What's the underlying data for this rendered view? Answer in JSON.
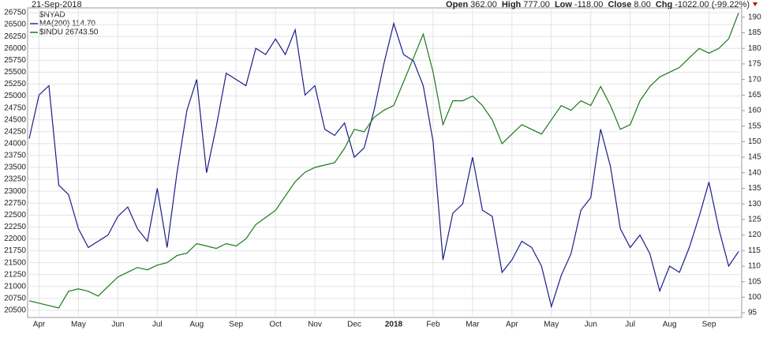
{
  "chart_data": {
    "type": "line",
    "title": "$NYAD",
    "date": "21-Sep-2018",
    "quote": [
      {
        "label": "Open",
        "value": "362.00"
      },
      {
        "label": "High",
        "value": "777.00"
      },
      {
        "label": "Low",
        "value": "-118.00"
      },
      {
        "label": "Close",
        "value": "8.00"
      },
      {
        "label": "Chg",
        "value": "-1022.00 (-99.22%)"
      }
    ],
    "categories": [
      null,
      "Apr",
      null,
      null,
      null,
      "May",
      null,
      null,
      null,
      "Jun",
      null,
      null,
      null,
      "Jul",
      null,
      null,
      null,
      "Aug",
      null,
      null,
      null,
      "Sep",
      null,
      null,
      null,
      "Oct",
      null,
      null,
      null,
      "Nov",
      null,
      null,
      null,
      "Dec",
      null,
      null,
      null,
      "2018",
      null,
      null,
      null,
      "Feb",
      null,
      null,
      null,
      "Mar",
      null,
      null,
      null,
      "Apr",
      null,
      null,
      null,
      "May",
      null,
      null,
      null,
      "Jun",
      null,
      null,
      null,
      "Jul",
      null,
      null,
      null,
      "Aug",
      null,
      null,
      null,
      "Sep",
      null,
      null,
      null
    ],
    "series": [
      {
        "name": "MA(200) 114.70",
        "color": "#1c1c8c",
        "axis": "y2",
        "values": [
          151,
          165,
          168,
          136,
          133,
          122,
          116,
          118,
          120,
          126,
          129,
          122,
          118,
          135,
          116,
          140,
          160,
          170,
          140,
          155,
          172,
          170,
          168,
          180,
          178,
          183,
          178,
          186,
          165,
          168,
          154,
          152,
          156,
          145,
          148,
          160,
          175,
          188,
          178,
          176,
          168,
          150,
          112,
          127,
          130,
          145,
          128,
          126,
          108,
          112,
          118,
          116,
          110,
          97,
          107,
          114,
          128,
          132,
          154,
          142,
          122,
          116,
          120,
          114,
          102,
          110,
          108,
          116,
          126,
          137,
          122,
          110,
          114.7
        ]
      },
      {
        "name": "$INDU 26743.50",
        "color": "#1a7a1a",
        "values": [
          20700,
          20650,
          20600,
          20550,
          20900,
          20950,
          20900,
          20800,
          21000,
          21200,
          21300,
          21400,
          21350,
          21450,
          21500,
          21650,
          21700,
          21900,
          21850,
          21800,
          21900,
          21850,
          22000,
          22300,
          22450,
          22600,
          22900,
          23200,
          23400,
          23500,
          23550,
          23600,
          23900,
          24300,
          24250,
          24550,
          24700,
          24800,
          25300,
          25800,
          26300,
          25500,
          24400,
          24900,
          24900,
          25000,
          24800,
          24500,
          24000,
          24200,
          24400,
          24300,
          24200,
          24500,
          24800,
          24700,
          24900,
          24800,
          25200,
          24800,
          24300,
          24400,
          24900,
          25200,
          25400,
          25500,
          25600,
          25800,
          26000,
          25900,
          26000,
          26200,
          26743.5
        ]
      }
    ],
    "ylim": [
      20350,
      26850
    ],
    "yticks": [
      20500,
      20750,
      21000,
      21250,
      21500,
      21750,
      22000,
      22250,
      22500,
      22750,
      23000,
      23250,
      23500,
      23750,
      24000,
      24250,
      24500,
      24750,
      25000,
      25250,
      25500,
      25750,
      26000,
      26250,
      26500,
      26750
    ],
    "y2lim": [
      93.5,
      193
    ],
    "y2ticks": [
      95,
      100,
      105,
      110,
      115,
      120,
      125,
      130,
      135,
      140,
      145,
      150,
      155,
      160,
      165,
      170,
      175,
      180,
      185,
      190
    ],
    "grid": true
  }
}
